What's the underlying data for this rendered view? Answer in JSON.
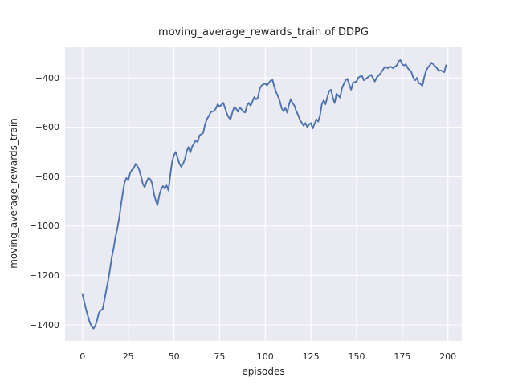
{
  "chart_data": {
    "type": "line",
    "title": "moving_average_rewards_train of DDPG",
    "xlabel": "episodes",
    "ylabel": "moving_average_rewards_train",
    "grid": true,
    "legend": null,
    "xticks": [
      0,
      25,
      50,
      75,
      100,
      125,
      150,
      175,
      200
    ],
    "xtick_labels": [
      "0",
      "25",
      "50",
      "75",
      "100",
      "125",
      "150",
      "175",
      "200"
    ],
    "yticks": [
      -400,
      -600,
      -800,
      -1000,
      -1200,
      -1400
    ],
    "ytick_labels": [
      "−400",
      "−600",
      "−800",
      "−1000",
      "−1200",
      "−1400"
    ],
    "xlim": [
      -9.6,
      207.6
    ],
    "ylim": [
      -1465,
      -273
    ],
    "series": [
      {
        "name": "moving average rewards (train), DDPG",
        "x_start": 0,
        "x_step": 1,
        "values": [
          -1275,
          -1310,
          -1341,
          -1367,
          -1391,
          -1406,
          -1415,
          -1403,
          -1380,
          -1350,
          -1341,
          -1336,
          -1298,
          -1258,
          -1220,
          -1175,
          -1126,
          -1090,
          -1043,
          -1012,
          -970,
          -915,
          -866,
          -824,
          -805,
          -815,
          -786,
          -773,
          -766,
          -748,
          -757,
          -772,
          -799,
          -830,
          -843,
          -822,
          -806,
          -810,
          -826,
          -866,
          -895,
          -915,
          -874,
          -852,
          -838,
          -849,
          -836,
          -856,
          -794,
          -740,
          -713,
          -700,
          -724,
          -748,
          -760,
          -748,
          -730,
          -697,
          -680,
          -702,
          -678,
          -665,
          -653,
          -660,
          -633,
          -628,
          -624,
          -590,
          -568,
          -556,
          -541,
          -536,
          -534,
          -523,
          -507,
          -517,
          -509,
          -501,
          -522,
          -545,
          -560,
          -567,
          -540,
          -519,
          -524,
          -537,
          -521,
          -527,
          -537,
          -540,
          -513,
          -501,
          -513,
          -495,
          -478,
          -487,
          -480,
          -443,
          -431,
          -426,
          -423,
          -431,
          -419,
          -411,
          -409,
          -437,
          -458,
          -475,
          -495,
          -523,
          -535,
          -522,
          -541,
          -508,
          -486,
          -503,
          -513,
          -535,
          -550,
          -570,
          -582,
          -594,
          -583,
          -599,
          -588,
          -583,
          -605,
          -585,
          -568,
          -577,
          -551,
          -505,
          -491,
          -507,
          -478,
          -453,
          -448,
          -480,
          -502,
          -464,
          -472,
          -480,
          -442,
          -424,
          -410,
          -404,
          -428,
          -448,
          -421,
          -417,
          -415,
          -399,
          -394,
          -393,
          -410,
          -404,
          -399,
          -393,
          -388,
          -402,
          -415,
          -399,
          -391,
          -383,
          -372,
          -361,
          -356,
          -361,
          -355,
          -356,
          -361,
          -354,
          -350,
          -333,
          -328,
          -345,
          -350,
          -345,
          -361,
          -369,
          -377,
          -399,
          -410,
          -400,
          -421,
          -425,
          -432,
          -399,
          -372,
          -358,
          -350,
          -339,
          -345,
          -353,
          -361,
          -372,
          -370,
          -373,
          -377,
          -349
        ]
      }
    ],
    "style": {
      "line_color": "#4c72b0",
      "line_width": 1.9,
      "plot_bg": "#eaeaf2",
      "grid_color": "#ffffff",
      "grid_width": 1.1,
      "text_color": "#262626",
      "figure_bg": "#ffffff"
    }
  }
}
